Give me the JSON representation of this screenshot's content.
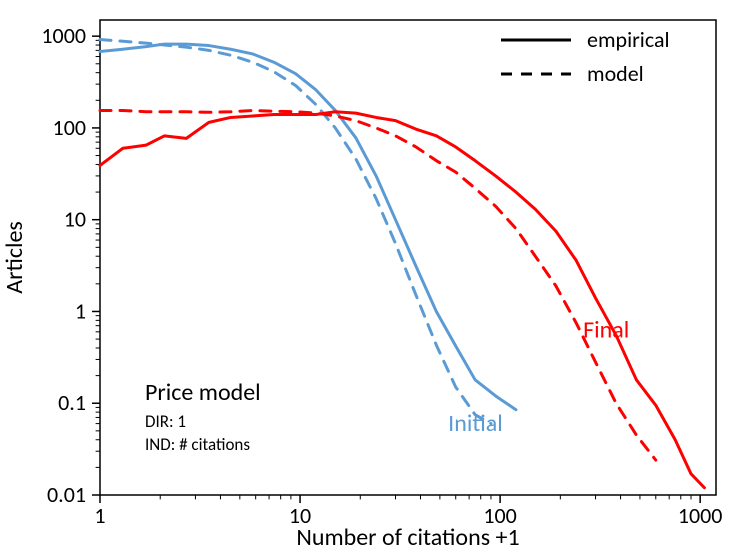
{
  "chart": {
    "type": "line",
    "x_scale": "log",
    "y_scale": "log",
    "xlim": [
      1,
      1200
    ],
    "ylim": [
      0.01,
      1500
    ],
    "x_ticks": [
      1,
      10,
      100,
      1000
    ],
    "x_tick_labels": [
      "1",
      "10",
      "100",
      "1000"
    ],
    "y_ticks": [
      0.01,
      0.1,
      1,
      10,
      100,
      1000
    ],
    "y_tick_labels": [
      "0.01",
      "0.1",
      "1",
      "10",
      "100",
      "1000"
    ],
    "xlabel": "Number of citations +1",
    "ylabel": "Articles",
    "label_fontsize": 24,
    "tick_fontsize": 22,
    "background_color": "#ffffff",
    "axis_color": "#000000",
    "axis_line_width": 1.5,
    "tick_length": 8,
    "series": {
      "initial_empirical": {
        "color": "#5b9bd5",
        "dash": "solid",
        "width": 3,
        "x": [
          1,
          1.3,
          1.7,
          2.1,
          2.7,
          3.5,
          4.5,
          5.8,
          7.4,
          9.5,
          12,
          15,
          19,
          24,
          30,
          38,
          48,
          60,
          75,
          95,
          120
        ],
        "y": [
          680,
          720,
          770,
          820,
          820,
          790,
          720,
          640,
          520,
          390,
          260,
          155,
          78,
          30,
          10,
          3.1,
          1.0,
          0.42,
          0.18,
          0.12,
          0.085
        ]
      },
      "initial_model": {
        "color": "#5b9bd5",
        "dash": "dashed",
        "width": 3,
        "x": [
          1,
          1.3,
          1.7,
          2.1,
          2.7,
          3.5,
          4.5,
          5.8,
          7.4,
          9.5,
          12,
          15,
          19,
          24,
          30,
          38,
          48,
          60,
          75,
          90
        ],
        "y": [
          920,
          880,
          840,
          800,
          760,
          700,
          620,
          520,
          410,
          290,
          180,
          100,
          46,
          17,
          5.5,
          1.5,
          0.43,
          0.15,
          0.075,
          0.06
        ]
      },
      "final_empirical": {
        "color": "#ff0000",
        "dash": "solid",
        "width": 3,
        "x": [
          1,
          1.3,
          1.7,
          2.1,
          2.7,
          3.5,
          4.5,
          5.8,
          7.4,
          9.5,
          12,
          15,
          19,
          24,
          30,
          38,
          48,
          60,
          75,
          95,
          120,
          150,
          190,
          240,
          300,
          380,
          480,
          600,
          750,
          900,
          1050
        ],
        "y": [
          39,
          60,
          65,
          82,
          77,
          115,
          130,
          135,
          140,
          140,
          140,
          150,
          145,
          130,
          120,
          97,
          82,
          62,
          44,
          30,
          20,
          13,
          7.5,
          3.6,
          1.4,
          0.55,
          0.18,
          0.095,
          0.04,
          0.017,
          0.012
        ]
      },
      "final_model": {
        "color": "#ff0000",
        "dash": "dashed",
        "width": 3,
        "x": [
          1,
          1.3,
          1.7,
          2.1,
          2.7,
          3.5,
          4.5,
          5.8,
          7.4,
          9.5,
          12,
          15,
          19,
          24,
          30,
          38,
          48,
          60,
          75,
          95,
          120,
          150,
          190,
          240,
          300,
          380,
          480,
          600
        ],
        "y": [
          155,
          155,
          150,
          150,
          150,
          148,
          150,
          155,
          152,
          150,
          145,
          135,
          120,
          100,
          82,
          62,
          44,
          33,
          22,
          14,
          8.0,
          4.0,
          1.9,
          0.75,
          0.28,
          0.1,
          0.045,
          0.024
        ]
      }
    },
    "legend": {
      "items": [
        {
          "label": "empirical",
          "style": "solid",
          "linewidth": 3,
          "color": "#000000"
        },
        {
          "label": "model",
          "style": "dashed",
          "linewidth": 3,
          "color": "#000000"
        }
      ],
      "fontsize": 22
    },
    "annotations": {
      "model_title": "Price model",
      "dir_line": "DIR: 1",
      "ind_line": "IND: # citations",
      "initial_label": "Initial",
      "initial_color": "#5b9bd5",
      "final_label": "Final",
      "final_color": "#ff0000",
      "major_fontsize": 24,
      "minor_fontsize": 17
    }
  }
}
